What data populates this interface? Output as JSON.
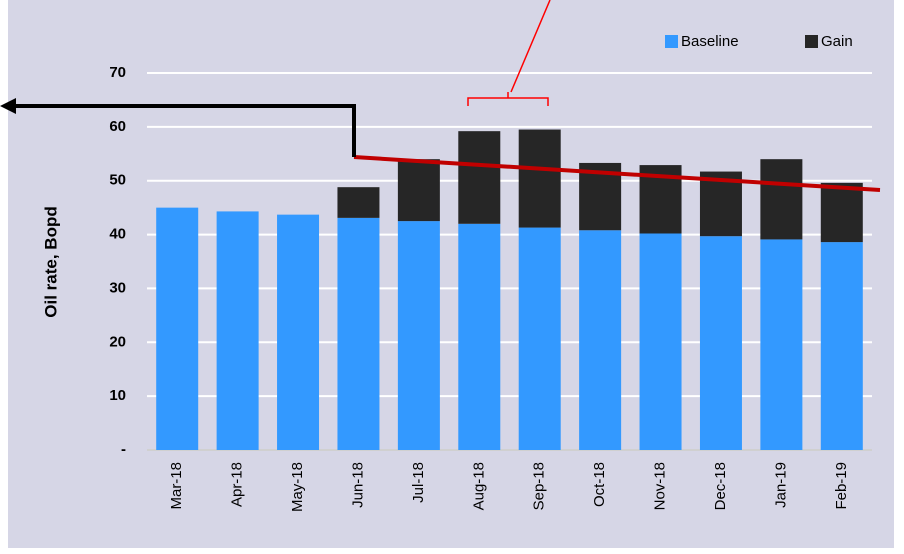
{
  "chart_data": {
    "type": "stacked_bar",
    "categories": [
      "Mar-18",
      "Apr-18",
      "May-18",
      "Jun-18",
      "Jul-18",
      "Aug-18",
      "Sep-18",
      "Oct-18",
      "Nov-18",
      "Dec-18",
      "Jan-19",
      "Feb-19"
    ],
    "series": [
      {
        "name": "Baseline",
        "color": "#3399ff",
        "values": [
          45,
          44.3,
          43.7,
          43.1,
          42.5,
          42,
          41.3,
          40.8,
          40.2,
          39.7,
          39.1,
          38.6
        ]
      },
      {
        "name": "Gain",
        "color": "#262626",
        "values": [
          0,
          0,
          0,
          5.7,
          11.5,
          17.2,
          18.2,
          12.5,
          12.7,
          12,
          14.9,
          11
        ]
      }
    ],
    "y_label": "Oil rate, Bopd",
    "ylim": [
      0,
      70
    ],
    "yticks": [
      {
        "value": 0,
        "label": "-"
      },
      10,
      20,
      30,
      40,
      50,
      60,
      70
    ],
    "grid": true,
    "legend": "top-right"
  }
}
